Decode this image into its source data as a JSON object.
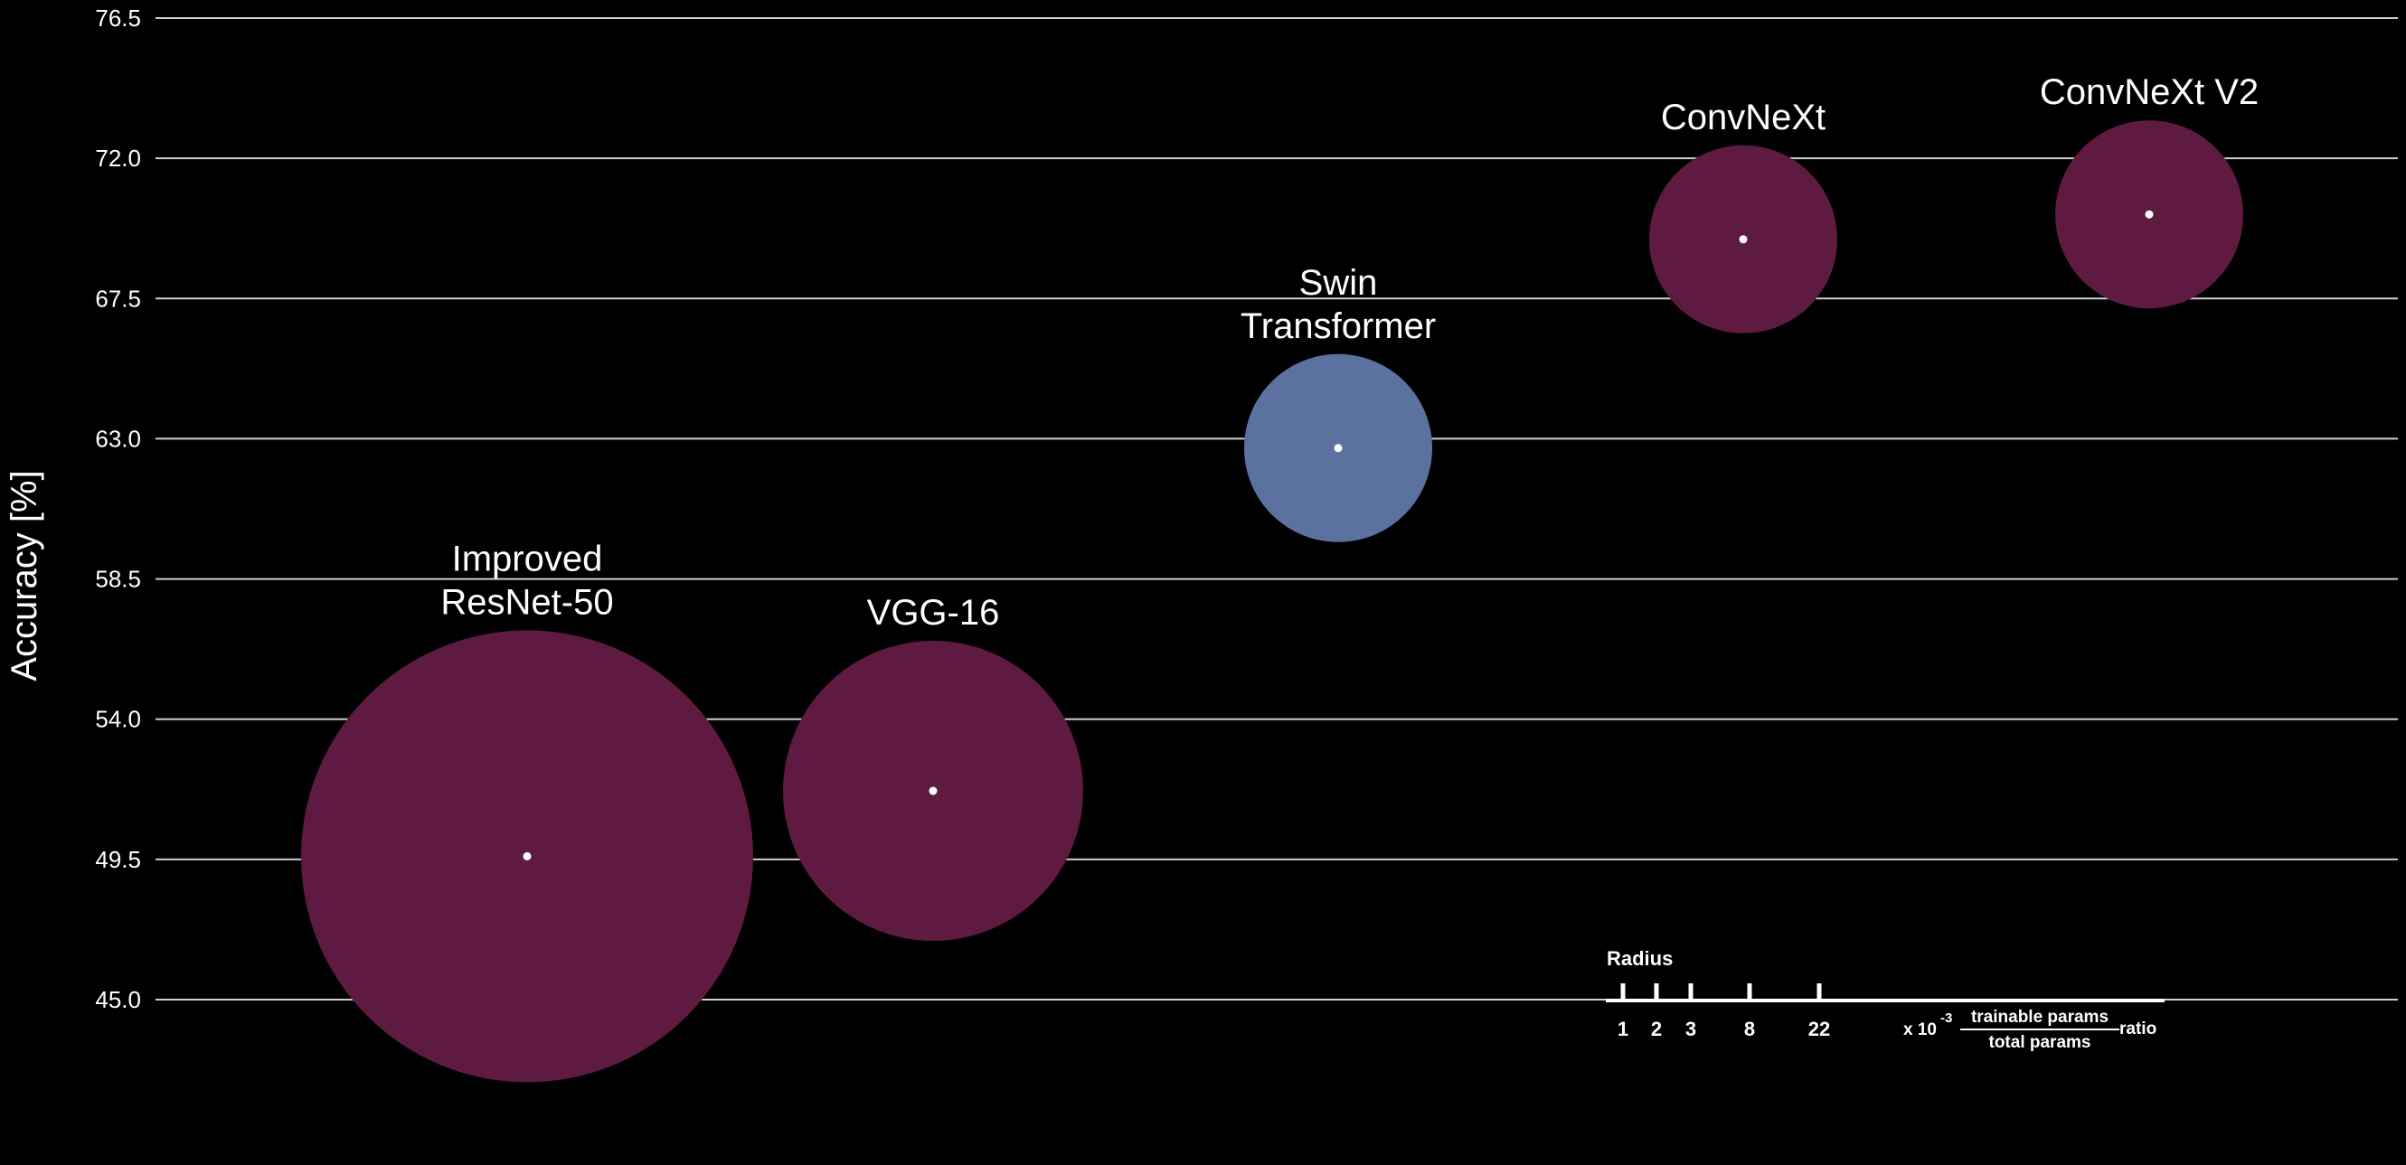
{
  "chart_data": {
    "type": "scatter",
    "ylabel": "Accuracy [%]",
    "xlabel": "",
    "ylim": [
      45.0,
      76.5
    ],
    "yticks": [
      "45.0",
      "49.5",
      "54.0",
      "58.5",
      "63.0",
      "67.5",
      "72.0",
      "76.5"
    ],
    "grid": true,
    "points": [
      {
        "label_lines": [
          "Improved",
          "ResNet-50"
        ],
        "y": 49.6,
        "radius_value": 22,
        "color": "#5e1a40"
      },
      {
        "label_lines": [
          "VGG-16"
        ],
        "y": 51.7,
        "radius_value": 8,
        "color": "#5e1a40"
      },
      {
        "label_lines": [
          "Swin",
          "Transformer"
        ],
        "y": 62.7,
        "radius_value": 3,
        "color": "#5b72a0"
      },
      {
        "label_lines": [
          "ConvNeXt"
        ],
        "y": 69.4,
        "radius_value": 3,
        "color": "#5e1a40"
      },
      {
        "label_lines": [
          "ConvNeXt V2"
        ],
        "y": 70.2,
        "radius_value": 3,
        "color": "#5e1a40"
      }
    ],
    "legend": {
      "title": "Radius",
      "ticks": [
        "1",
        "2",
        "3",
        "8",
        "22"
      ],
      "multiplier": "x 10",
      "exponent": "-3",
      "numerator": "trainable params",
      "denominator": "total params",
      "suffix": "ratio",
      "placement": "bottom-right"
    }
  }
}
